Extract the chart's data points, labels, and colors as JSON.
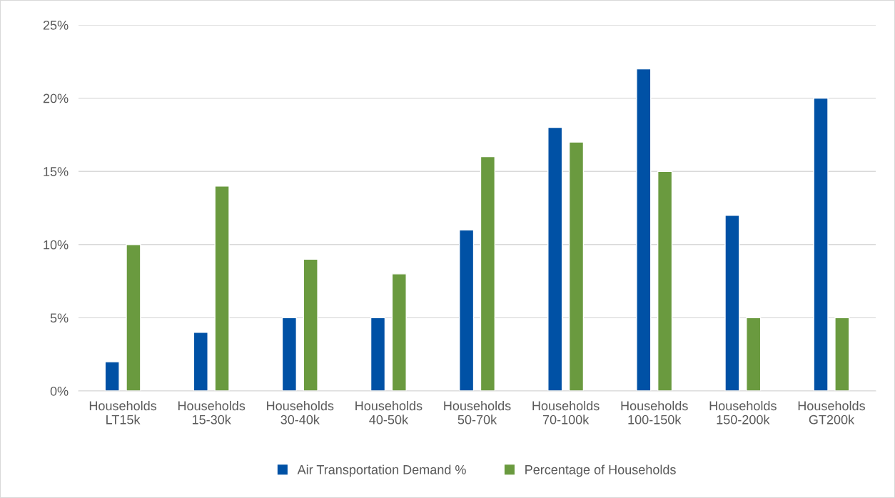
{
  "chart_data": {
    "type": "bar",
    "categories": [
      "Households\nLT15k",
      "Households\n15-30k",
      "Households\n30-40k",
      "Households\n40-50k",
      "Households\n50-70k",
      "Households\n70-100k",
      "Households\n100-150k",
      "Households\n150-200k",
      "Households\nGT200k"
    ],
    "series": [
      {
        "name": "Air Transportation Demand %",
        "color": "#0051a5",
        "values": [
          2,
          4,
          5,
          5,
          11,
          18,
          22,
          12,
          20
        ]
      },
      {
        "name": "Percentage of Households",
        "color": "#6a9a3f",
        "values": [
          10,
          14,
          9,
          8,
          16,
          17,
          15,
          5,
          5
        ]
      }
    ],
    "ylim": [
      0,
      25
    ],
    "yticks": [
      {
        "value": 0,
        "label": "0%"
      },
      {
        "value": 5,
        "label": "5%"
      },
      {
        "value": 10,
        "label": "10%"
      },
      {
        "value": 15,
        "label": "15%"
      },
      {
        "value": 20,
        "label": "20%"
      },
      {
        "value": 25,
        "label": "25%"
      }
    ],
    "grid": "y",
    "legend": "bottom"
  }
}
